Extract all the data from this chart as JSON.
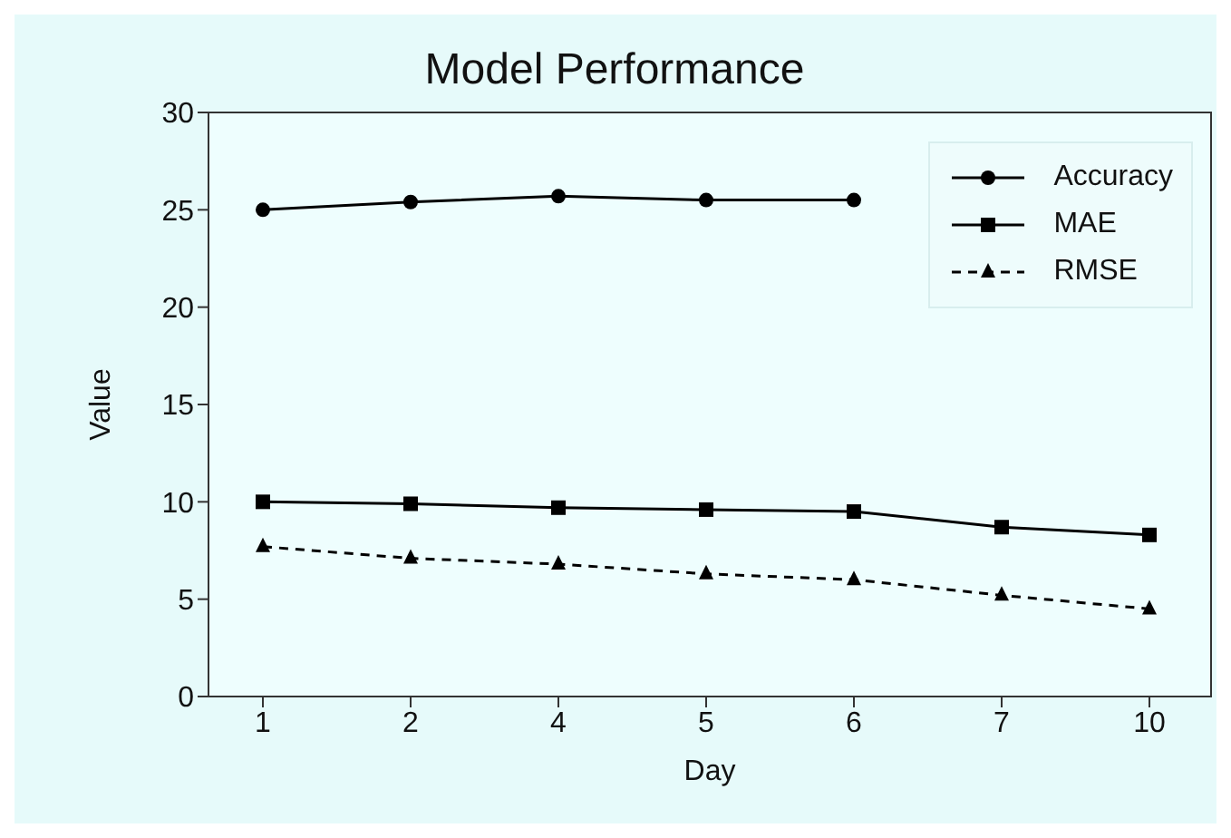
{
  "chart_data": {
    "type": "line",
    "title": "Model Performance",
    "xlabel": "Day",
    "ylabel": "Value",
    "categories": [
      "1",
      "2",
      "4",
      "5",
      "6",
      "7",
      "10"
    ],
    "series": [
      {
        "name": "Accuracy",
        "color": "#000000",
        "marker": "circle",
        "line_style": "solid",
        "values": [
          25,
          25.4,
          25.7,
          25.5,
          25.5,
          null,
          null
        ]
      },
      {
        "name": "MAE",
        "color": "#000000",
        "marker": "square",
        "line_style": "solid",
        "values": [
          10.0,
          9.9,
          9.7,
          9.6,
          9.5,
          8.7,
          8.3
        ]
      },
      {
        "name": "RMSE",
        "color": "#000000",
        "marker": "triangle",
        "line_style": "dashed",
        "values": [
          7.7,
          7.1,
          6.8,
          6.3,
          6.0,
          5.2,
          4.5
        ]
      }
    ],
    "ylim": [
      0,
      30
    ],
    "yticks": [
      0,
      5,
      10,
      15,
      20,
      25,
      30
    ],
    "legend": "top right"
  }
}
